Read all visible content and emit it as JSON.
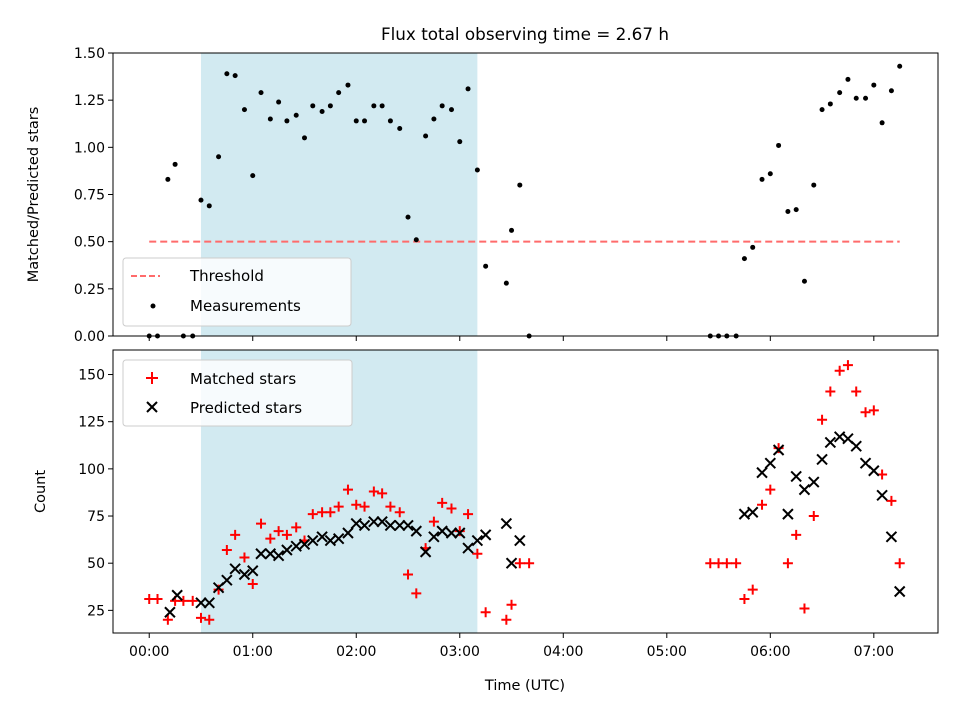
{
  "figure": {
    "title": "Flux total observing time = 2.67 h",
    "shaded_interval": {
      "x_start_h": 0.5,
      "x_end_h": 3.17,
      "color": "#add8e6"
    },
    "xlabel": "Time (UTC)",
    "xticks": [
      {
        "value": 0,
        "label": "00:00"
      },
      {
        "value": 1,
        "label": "01:00"
      },
      {
        "value": 2,
        "label": "02:00"
      },
      {
        "value": 3,
        "label": "03:00"
      },
      {
        "value": 4,
        "label": "04:00"
      },
      {
        "value": 5,
        "label": "05:00"
      },
      {
        "value": 6,
        "label": "06:00"
      },
      {
        "value": 7,
        "label": "07:00"
      }
    ],
    "xlim": [
      -0.35,
      7.62
    ]
  },
  "chart_data": [
    {
      "type": "scatter",
      "panel": "top",
      "ylabel": "Matched/Predicted stars",
      "ylim": [
        0,
        1.5
      ],
      "yticks": [
        {
          "value": 0,
          "label": "0.00"
        },
        {
          "value": 0.25,
          "label": "0.25"
        },
        {
          "value": 0.5,
          "label": "0.50"
        },
        {
          "value": 0.75,
          "label": "0.75"
        },
        {
          "value": 1.0,
          "label": "1.00"
        },
        {
          "value": 1.25,
          "label": "1.25"
        },
        {
          "value": 1.5,
          "label": "1.50"
        }
      ],
      "legend": "lower-left",
      "threshold": {
        "name": "Threshold",
        "value": 0.5,
        "x": [
          0,
          7.25
        ],
        "color": "#ff6b6b"
      },
      "series": [
        {
          "name": "Measurements",
          "color": "#000000",
          "x": [
            0.0,
            0.08,
            0.18,
            0.25,
            0.33,
            0.42,
            0.5,
            0.58,
            0.67,
            0.75,
            0.83,
            0.92,
            1.0,
            1.08,
            1.17,
            1.25,
            1.33,
            1.42,
            1.5,
            1.58,
            1.67,
            1.75,
            1.83,
            1.92,
            2.0,
            2.08,
            2.17,
            2.25,
            2.33,
            2.42,
            2.5,
            2.58,
            2.67,
            2.75,
            2.83,
            2.92,
            3.0,
            3.08,
            3.17,
            3.25,
            3.45,
            3.5,
            3.58,
            3.67,
            5.42,
            5.5,
            5.58,
            5.67,
            5.75,
            5.83,
            5.92,
            6.0,
            6.08,
            6.17,
            6.25,
            6.33,
            6.42,
            6.5,
            6.58,
            6.67,
            6.75,
            6.83,
            6.92,
            7.0,
            7.08,
            7.17,
            7.25
          ],
          "y": [
            0.0,
            0.0,
            0.83,
            0.91,
            0.0,
            0.0,
            0.72,
            0.69,
            0.95,
            1.39,
            1.38,
            1.2,
            0.85,
            1.29,
            1.15,
            1.24,
            1.14,
            1.17,
            1.05,
            1.22,
            1.19,
            1.22,
            1.29,
            1.33,
            1.14,
            1.14,
            1.22,
            1.22,
            1.14,
            1.1,
            0.63,
            0.51,
            1.06,
            1.15,
            1.22,
            1.2,
            1.03,
            1.31,
            0.88,
            0.37,
            0.28,
            0.56,
            0.8,
            0.0,
            0.0,
            0.0,
            0.0,
            0.0,
            0.41,
            0.47,
            0.83,
            0.86,
            1.01,
            0.66,
            0.67,
            0.29,
            0.8,
            1.2,
            1.23,
            1.29,
            1.36,
            1.26,
            1.26,
            1.33,
            1.13,
            1.3,
            1.43
          ]
        }
      ]
    },
    {
      "type": "scatter",
      "panel": "bottom",
      "ylabel": "Count",
      "ylim": [
        13,
        163
      ],
      "yticks": [
        {
          "value": 25,
          "label": "25"
        },
        {
          "value": 50,
          "label": "50"
        },
        {
          "value": 75,
          "label": "75"
        },
        {
          "value": 100,
          "label": "100"
        },
        {
          "value": 125,
          "label": "125"
        },
        {
          "value": 150,
          "label": "150"
        }
      ],
      "legend": "upper-left",
      "series": [
        {
          "name": "Matched stars",
          "marker": "plus",
          "color": "#ff0000",
          "x": [
            0.0,
            0.08,
            0.18,
            0.25,
            0.33,
            0.42,
            0.5,
            0.58,
            0.67,
            0.75,
            0.83,
            0.92,
            1.0,
            1.08,
            1.17,
            1.25,
            1.33,
            1.42,
            1.5,
            1.58,
            1.67,
            1.75,
            1.83,
            1.92,
            2.0,
            2.08,
            2.17,
            2.25,
            2.33,
            2.42,
            2.5,
            2.58,
            2.67,
            2.75,
            2.83,
            2.92,
            3.0,
            3.08,
            3.17,
            3.25,
            3.45,
            3.5,
            3.58,
            3.67,
            5.42,
            5.5,
            5.58,
            5.67,
            5.75,
            5.83,
            5.92,
            6.0,
            6.08,
            6.17,
            6.25,
            6.33,
            6.42,
            6.5,
            6.58,
            6.67,
            6.75,
            6.83,
            6.92,
            7.0,
            7.08,
            7.17,
            7.25
          ],
          "y": [
            31,
            31,
            20,
            30,
            30,
            30,
            21,
            20,
            36,
            57,
            65,
            53,
            39,
            71,
            63,
            67,
            65,
            69,
            62,
            76,
            77,
            77,
            80,
            89,
            81,
            80,
            88,
            87,
            80,
            77,
            44,
            34,
            58,
            72,
            82,
            79,
            67,
            76,
            55,
            24,
            20,
            28,
            50,
            50,
            50,
            50,
            50,
            50,
            31,
            36,
            81,
            89,
            111,
            50,
            65,
            26,
            75,
            126,
            141,
            152,
            155,
            141,
            130,
            131,
            97,
            83,
            50
          ]
        },
        {
          "name": "Predicted stars",
          "marker": "x",
          "color": "#000000",
          "x": [
            0.2,
            0.27,
            0.5,
            0.58,
            0.67,
            0.75,
            0.83,
            0.92,
            1.0,
            1.08,
            1.17,
            1.25,
            1.33,
            1.42,
            1.5,
            1.58,
            1.67,
            1.75,
            1.83,
            1.92,
            2.0,
            2.08,
            2.17,
            2.25,
            2.33,
            2.42,
            2.5,
            2.58,
            2.67,
            2.75,
            2.83,
            2.92,
            3.0,
            3.08,
            3.17,
            3.25,
            3.45,
            3.5,
            3.58,
            5.75,
            5.83,
            5.92,
            6.0,
            6.08,
            6.17,
            6.25,
            6.33,
            6.42,
            6.5,
            6.58,
            6.67,
            6.75,
            6.83,
            6.92,
            7.0,
            7.08,
            7.17,
            7.25
          ],
          "y": [
            24,
            33,
            29,
            29,
            37,
            41,
            47,
            44,
            46,
            55,
            55,
            54,
            57,
            59,
            60,
            62,
            64,
            62,
            63,
            66,
            71,
            70,
            72,
            72,
            70,
            70,
            70,
            67,
            56,
            64,
            67,
            66,
            66,
            58,
            62,
            65,
            71,
            50,
            62,
            76,
            77,
            98,
            103,
            110,
            76,
            96,
            89,
            93,
            105,
            114,
            117,
            116,
            112,
            103,
            99,
            86,
            64,
            35
          ]
        }
      ]
    }
  ]
}
